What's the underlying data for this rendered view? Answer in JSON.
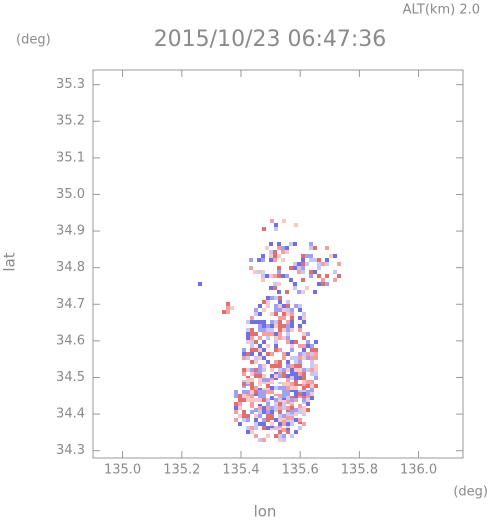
{
  "chart_data": {
    "type": "radar-map",
    "title": "2015/10/23 06:47:36",
    "subtitle": "ALT(km) 2.0",
    "x_label": "lon",
    "y_label": "lat",
    "x_unit": "(deg)",
    "y_unit": "(deg)",
    "xlim": [
      134.9,
      136.15
    ],
    "ylim": [
      34.28,
      35.34
    ],
    "xticks": [
      {
        "value": 135.0,
        "label": "135.0"
      },
      135.2,
      135.4,
      135.6,
      135.8,
      {
        "value": 136.0,
        "label": "136.0"
      }
    ],
    "yticks": [
      34.3,
      34.4,
      34.5,
      34.6,
      34.7,
      34.8,
      34.9,
      {
        "value": 35.0,
        "label": "35.0"
      },
      35.1,
      35.2,
      35.3
    ]
  }
}
